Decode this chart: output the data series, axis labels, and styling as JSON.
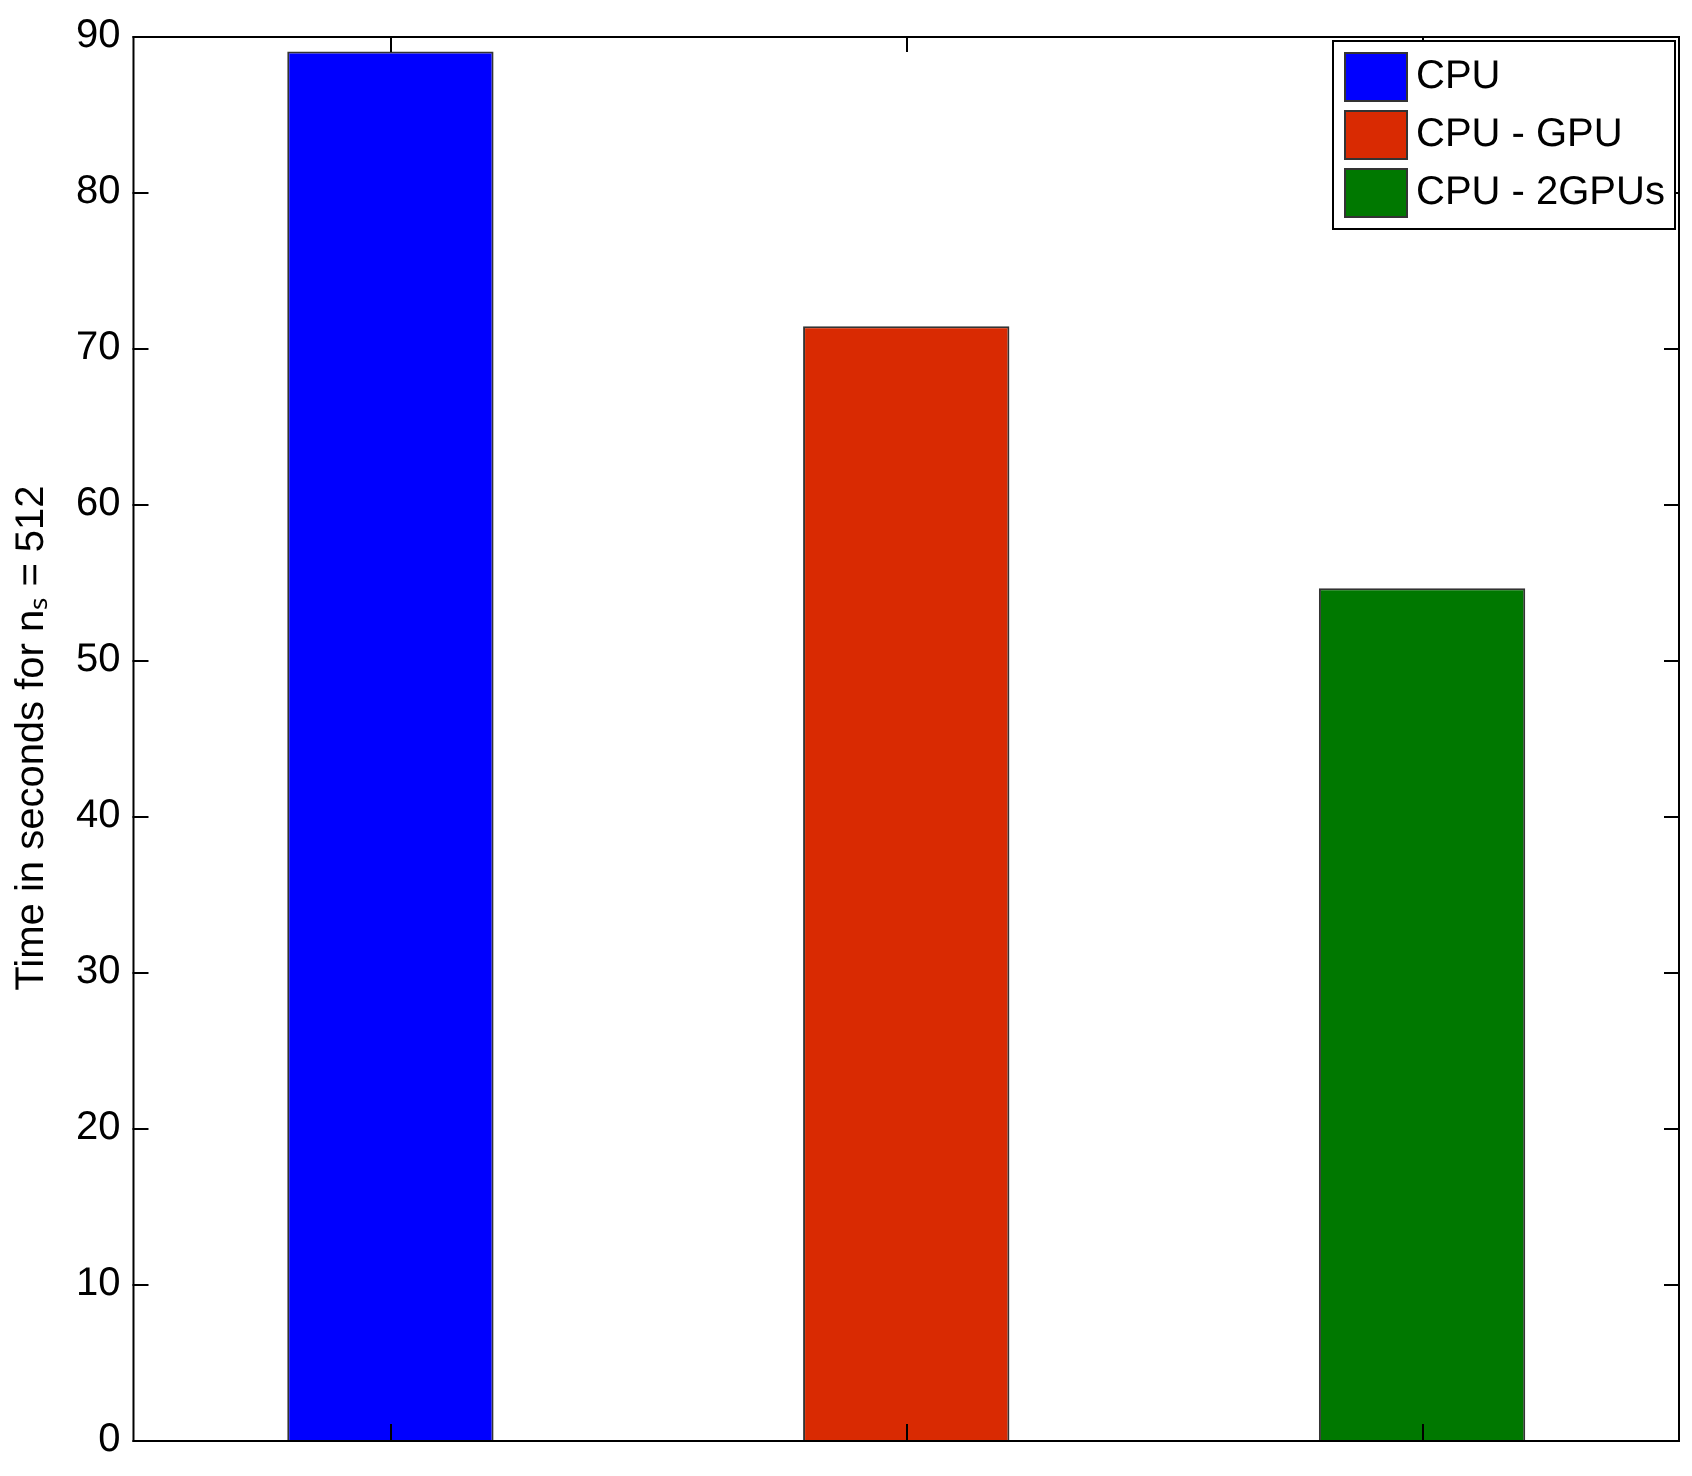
{
  "chart_data": {
    "type": "bar",
    "ylabel": "Time in seconds for nₛ = 512",
    "categories": [
      null,
      null,
      null
    ],
    "stacked": true,
    "series": [
      {
        "name": "CPU",
        "color": "#0000ff",
        "values": [
          89,
          null,
          null
        ]
      },
      {
        "name": "CPU - GPU",
        "color": "#d92a02",
        "values": [
          null,
          71.4,
          null
        ]
      },
      {
        "name": "CPU - 2GPUs",
        "color": "#007800",
        "values": [
          null,
          null,
          54.6
        ]
      }
    ],
    "ylim": [
      0,
      90
    ],
    "yticks": [
      0,
      10,
      20,
      30,
      40,
      50,
      60,
      70,
      80,
      90
    ],
    "grid": false,
    "legend": "top right",
    "tick_labels": "y"
  }
}
